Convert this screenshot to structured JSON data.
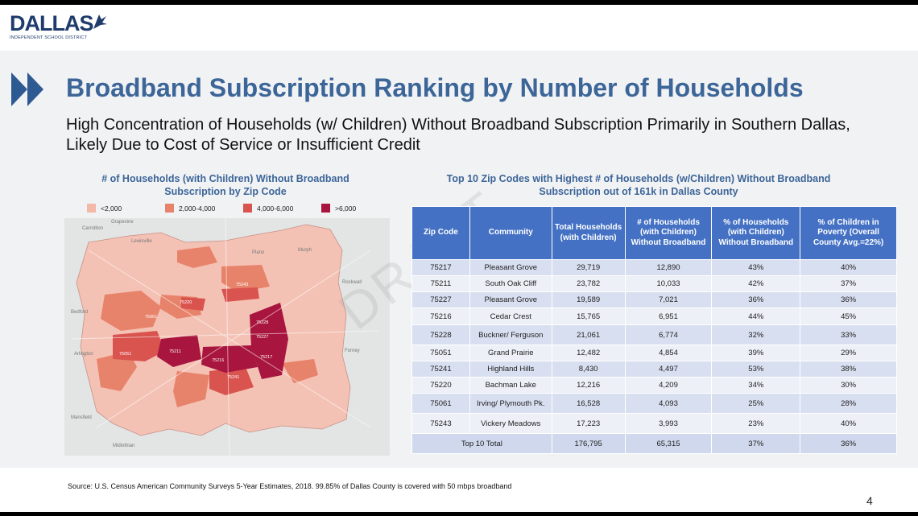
{
  "logo": {
    "name": "DALLAS",
    "sub": "INDEPENDENT SCHOOL DISTRICT"
  },
  "title": "Broadband Subscription Ranking by Number of Households",
  "subtitle": "High Concentration of Households (w/ Children) Without Broadband Subscription Primarily in Southern Dallas, Likely Due to Cost of Service or Insufficient Credit",
  "map": {
    "title": "# of Households (with Children) Without Broadband Subscription by Zip Code",
    "legend": [
      {
        "label": "<2,000",
        "color": "#f2b8a8"
      },
      {
        "label": "2,000-4,000",
        "color": "#e8836b"
      },
      {
        "label": "4,000-6,000",
        "color": "#d9534f"
      },
      {
        "label": ">6,000",
        "color": "#a8153e"
      }
    ],
    "zip_labels": [
      "75243",
      "75220",
      "75061",
      "75228",
      "75227",
      "75051",
      "75211",
      "75216",
      "75217",
      "75241"
    ],
    "place_labels": [
      "Lewisville",
      "Plano",
      "Murph",
      "Rockwall",
      "Bedford",
      "Arlington",
      "Forney",
      "Mansfield",
      "Midlothian",
      "Grapevine",
      "Carrollton"
    ]
  },
  "table": {
    "title": "Top 10 Zip Codes with Highest # of Households (w/Children) Without Broadband Subscription out of 161k in Dallas County",
    "headers": [
      "Zip Code",
      "Community",
      "Total Households (with Children)",
      "# of Households (with Children) Without Broadband",
      "% of Households (with Children) Without Broadband",
      "% of Children in Poverty (Overall County Avg.=22%)"
    ],
    "rows": [
      [
        "75217",
        "Pleasant Grove",
        "29,719",
        "12,890",
        "43%",
        "40%"
      ],
      [
        "75211",
        "South Oak Cliff",
        "23,782",
        "10,033",
        "42%",
        "37%"
      ],
      [
        "75227",
        "Pleasant Grove",
        "19,589",
        "7,021",
        "36%",
        "36%"
      ],
      [
        "75216",
        "Cedar Crest",
        "15,765",
        "6,951",
        "44%",
        "45%"
      ],
      [
        "75228",
        "Buckner/ Ferguson",
        "21,061",
        "6,774",
        "32%",
        "33%"
      ],
      [
        "75051",
        "Grand Prairie",
        "12,482",
        "4,854",
        "39%",
        "29%"
      ],
      [
        "75241",
        "Highland Hills",
        "8,430",
        "4,497",
        "53%",
        "38%"
      ],
      [
        "75220",
        "Bachman Lake",
        "12,216",
        "4,209",
        "34%",
        "30%"
      ],
      [
        "75061",
        "Irving/ Plymouth Pk.",
        "16,528",
        "4,093",
        "25%",
        "28%"
      ],
      [
        "75243",
        "Vickery Meadows",
        "17,223",
        "3,993",
        "23%",
        "40%"
      ]
    ],
    "total": {
      "label": "Top 10 Total",
      "values": [
        "176,795",
        "65,315",
        "37%",
        "36%"
      ]
    }
  },
  "watermark": "DRAFT",
  "source": "Source: U.S. Census American Community Surveys 5-Year Estimates, 2018. 99.85% of Dallas County is covered with 50 mbps broadband",
  "page_number": "4"
}
